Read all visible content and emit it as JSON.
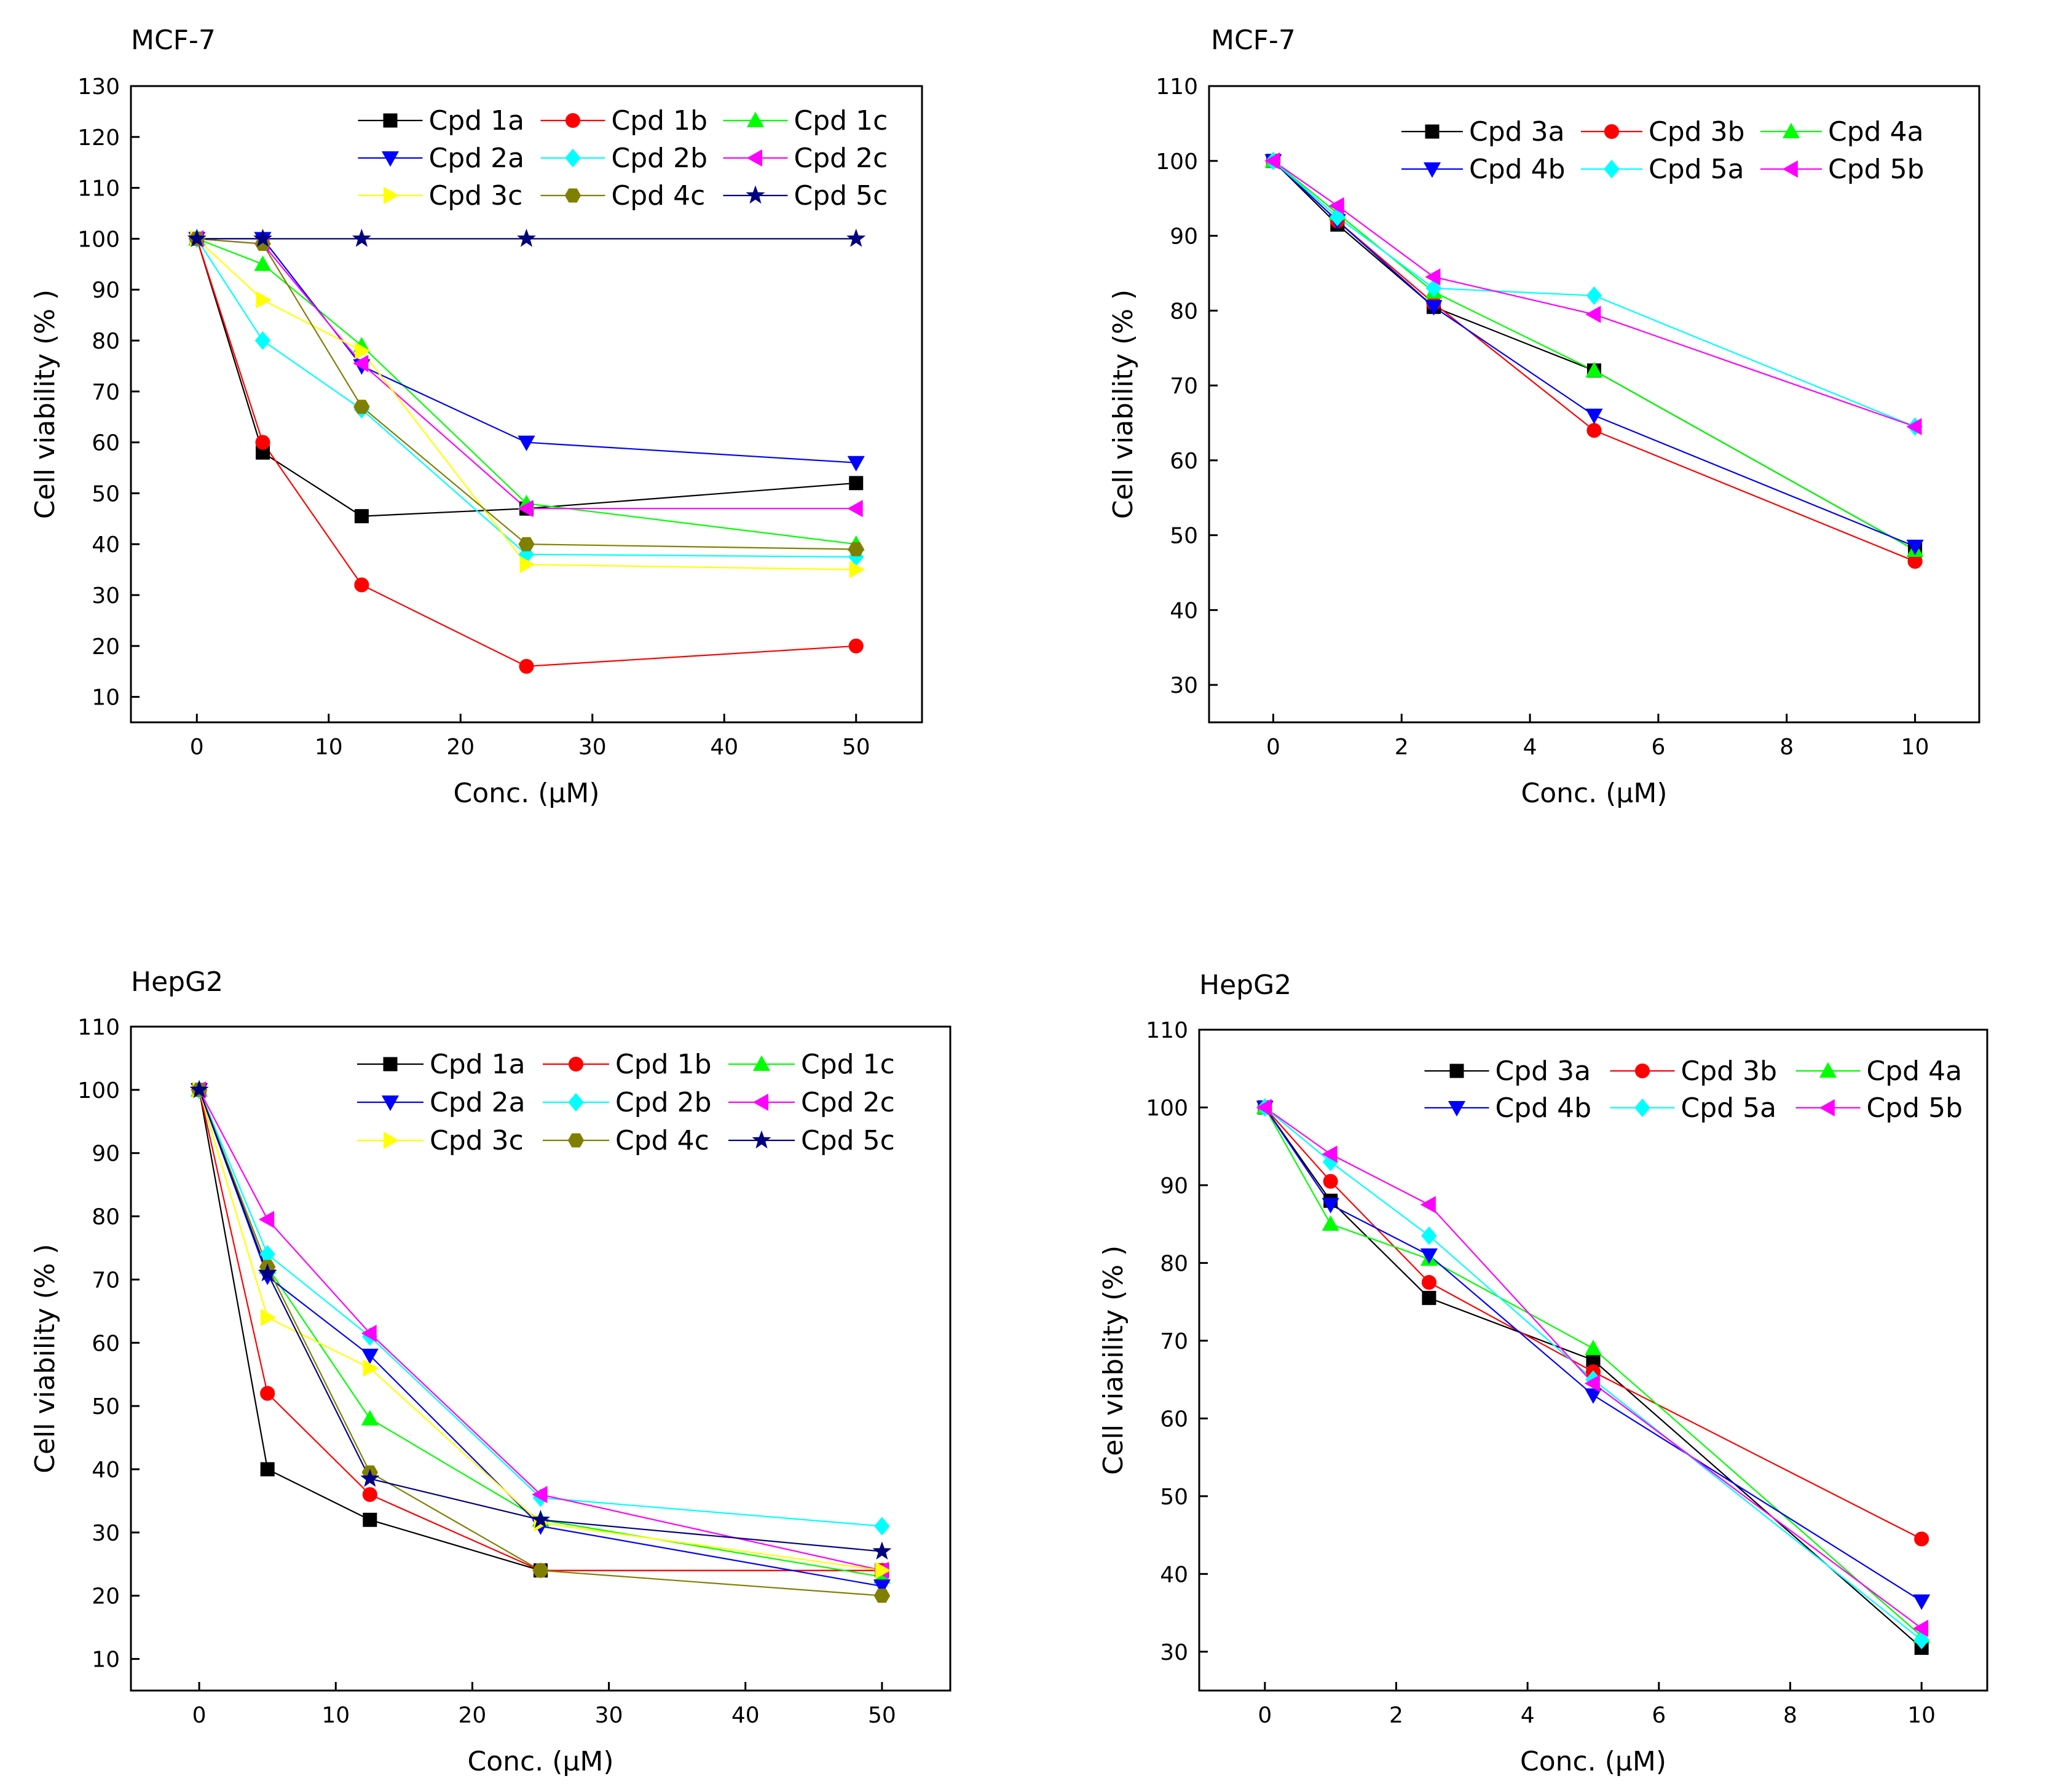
{
  "chart_data": [
    {
      "type": "line",
      "title": "MCF-7",
      "xlabel": "Conc. (μM)",
      "ylabel": "Cell viability (% )",
      "xlim": [
        -5,
        55
      ],
      "ylim": [
        5,
        130
      ],
      "xticks": [
        0,
        10,
        20,
        30,
        40,
        50
      ],
      "yticks": [
        10,
        20,
        30,
        40,
        50,
        60,
        70,
        80,
        90,
        100,
        110,
        120,
        130
      ],
      "x": [
        0,
        5,
        12.5,
        25,
        50
      ],
      "legend_position": "top-right",
      "series": [
        {
          "name": "Cpd 1a",
          "color": "#000000",
          "marker": "square",
          "values": [
            100,
            58,
            45.5,
            47,
            52
          ]
        },
        {
          "name": "Cpd 1b",
          "color": "#ff0000",
          "marker": "circle",
          "values": [
            100,
            60,
            32,
            16,
            20
          ]
        },
        {
          "name": "Cpd 1c",
          "color": "#00ff00",
          "marker": "triangle-up",
          "values": [
            100,
            95,
            79,
            48,
            40
          ]
        },
        {
          "name": "Cpd 2a",
          "color": "#0000ff",
          "marker": "triangle-down",
          "values": [
            100,
            100,
            75,
            60,
            56
          ]
        },
        {
          "name": "Cpd 2b",
          "color": "#00ffff",
          "marker": "diamond",
          "values": [
            100,
            80,
            66.5,
            38,
            37.5
          ]
        },
        {
          "name": "Cpd 2c",
          "color": "#ff00ff",
          "marker": "triangle-left",
          "values": [
            100,
            99,
            75.5,
            47,
            47
          ]
        },
        {
          "name": "Cpd 3c",
          "color": "#ffff00",
          "marker": "triangle-right",
          "values": [
            100,
            88,
            78,
            36,
            35
          ]
        },
        {
          "name": "Cpd 4c",
          "color": "#808000",
          "marker": "hexagon",
          "values": [
            100,
            99,
            67,
            40,
            39
          ]
        },
        {
          "name": "Cpd 5c",
          "color": "#000080",
          "marker": "star",
          "values": [
            100,
            100,
            100,
            100,
            100
          ]
        }
      ]
    },
    {
      "type": "line",
      "title": "MCF-7",
      "xlabel": "Conc. (μM)",
      "ylabel": "Cell viability (% )",
      "xlim": [
        -1,
        11
      ],
      "ylim": [
        25,
        110
      ],
      "xticks": [
        0,
        2,
        4,
        6,
        8,
        10
      ],
      "yticks": [
        30,
        40,
        50,
        60,
        70,
        80,
        90,
        100,
        110
      ],
      "x": [
        0,
        1,
        2.5,
        5,
        10
      ],
      "legend_position": "top-right",
      "series": [
        {
          "name": "Cpd 3a",
          "color": "#000000",
          "marker": "square",
          "values": [
            100,
            91.5,
            80.5,
            72,
            48
          ]
        },
        {
          "name": "Cpd 3b",
          "color": "#ff0000",
          "marker": "circle",
          "values": [
            100,
            92,
            81,
            64,
            46.5
          ]
        },
        {
          "name": "Cpd 4a",
          "color": "#00ff00",
          "marker": "triangle-up",
          "values": [
            100,
            93,
            82.5,
            72,
            48
          ]
        },
        {
          "name": "Cpd 4b",
          "color": "#0000ff",
          "marker": "triangle-down",
          "values": [
            100,
            92,
            80.5,
            66,
            48.5
          ]
        },
        {
          "name": "Cpd 5a",
          "color": "#00ffff",
          "marker": "diamond",
          "values": [
            100,
            92.5,
            83,
            82,
            64.5
          ]
        },
        {
          "name": "Cpd 5b",
          "color": "#ff00ff",
          "marker": "triangle-left",
          "values": [
            100,
            94,
            84.5,
            79.5,
            64.5
          ]
        }
      ]
    },
    {
      "type": "line",
      "title": "HepG2",
      "xlabel": "Conc. (μM)",
      "ylabel": "Cell viability (% )",
      "xlim": [
        -5,
        55
      ],
      "ylim": [
        5,
        110
      ],
      "xticks": [
        0,
        10,
        20,
        30,
        40,
        50
      ],
      "yticks": [
        10,
        20,
        30,
        40,
        50,
        60,
        70,
        80,
        90,
        100,
        110
      ],
      "x": [
        0,
        5,
        12.5,
        25,
        50
      ],
      "legend_position": "top-right",
      "series": [
        {
          "name": "Cpd 1a",
          "color": "#000000",
          "marker": "square",
          "values": [
            100,
            40,
            32,
            24,
            24
          ]
        },
        {
          "name": "Cpd 1b",
          "color": "#ff0000",
          "marker": "circle",
          "values": [
            100,
            52,
            36,
            24,
            24
          ]
        },
        {
          "name": "Cpd 1c",
          "color": "#00ff00",
          "marker": "triangle-up",
          "values": [
            100,
            72,
            48,
            32,
            23
          ]
        },
        {
          "name": "Cpd 2a",
          "color": "#0000ff",
          "marker": "triangle-down",
          "values": [
            100,
            70.5,
            58,
            31,
            21.5
          ]
        },
        {
          "name": "Cpd 2b",
          "color": "#00ffff",
          "marker": "diamond",
          "values": [
            100,
            74,
            61,
            35.5,
            31
          ]
        },
        {
          "name": "Cpd 2c",
          "color": "#ff00ff",
          "marker": "triangle-left",
          "values": [
            100,
            79.5,
            61.5,
            36,
            24
          ]
        },
        {
          "name": "Cpd 3c",
          "color": "#ffff00",
          "marker": "triangle-right",
          "values": [
            100,
            64,
            56,
            31.5,
            24
          ]
        },
        {
          "name": "Cpd 4c",
          "color": "#808000",
          "marker": "hexagon",
          "values": [
            100,
            72,
            39.5,
            24,
            20
          ]
        },
        {
          "name": "Cpd 5c",
          "color": "#000080",
          "marker": "star",
          "values": [
            100,
            71,
            38.5,
            32,
            27
          ]
        }
      ]
    },
    {
      "type": "line",
      "title": "HepG2",
      "xlabel": "Conc. (μM)",
      "ylabel": "Cell viability (% )",
      "xlim": [
        -1,
        11
      ],
      "ylim": [
        25,
        110
      ],
      "xticks": [
        0,
        2,
        4,
        6,
        8,
        10
      ],
      "yticks": [
        30,
        40,
        50,
        60,
        70,
        80,
        90,
        100,
        110
      ],
      "x": [
        0,
        1,
        2.5,
        5,
        10
      ],
      "legend_position": "top-right",
      "series": [
        {
          "name": "Cpd 3a",
          "color": "#000000",
          "marker": "square",
          "values": [
            100,
            88,
            75.5,
            67.5,
            30.5
          ]
        },
        {
          "name": "Cpd 3b",
          "color": "#ff0000",
          "marker": "circle",
          "values": [
            100,
            90.5,
            77.5,
            66,
            44.5
          ]
        },
        {
          "name": "Cpd 4a",
          "color": "#00ff00",
          "marker": "triangle-up",
          "values": [
            100,
            85,
            80.5,
            69,
            32
          ]
        },
        {
          "name": "Cpd 4b",
          "color": "#0000ff",
          "marker": "triangle-down",
          "values": [
            100,
            87.5,
            81,
            63,
            36.5
          ]
        },
        {
          "name": "Cpd 5a",
          "color": "#00ffff",
          "marker": "diamond",
          "values": [
            100,
            93,
            83.5,
            65,
            31.5
          ]
        },
        {
          "name": "Cpd 5b",
          "color": "#ff00ff",
          "marker": "triangle-left",
          "values": [
            100,
            94,
            87.5,
            64.5,
            33
          ]
        }
      ]
    }
  ]
}
